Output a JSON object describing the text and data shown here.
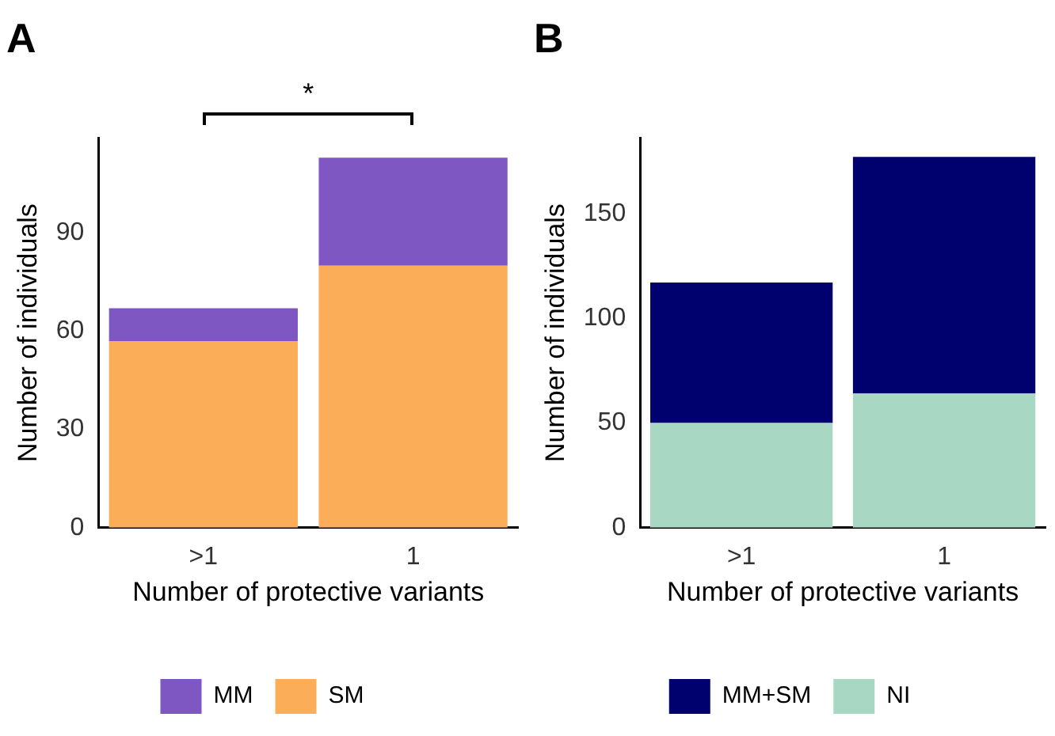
{
  "chart_data": [
    {
      "type": "bar",
      "title": "A",
      "xlabel": "Number of protective variants",
      "ylabel": "Number of individuals",
      "categories": [
        ">1",
        "1"
      ],
      "stacked": true,
      "series": [
        {
          "name": "SM",
          "color": "#fbae57",
          "values": [
            57,
            80
          ]
        },
        {
          "name": "MM",
          "color": "#7e57c2",
          "values": [
            10,
            33
          ]
        }
      ],
      "ylim": [
        0,
        119
      ],
      "yticks": [
        0,
        30,
        60,
        90
      ],
      "grid": false,
      "legend": "bottom",
      "annotations": [
        "*"
      ]
    },
    {
      "type": "bar",
      "title": "B",
      "xlabel": "Number of protective variants",
      "ylabel": "Number of individuals",
      "categories": [
        ">1",
        "1"
      ],
      "stacked": true,
      "series": [
        {
          "name": "NI",
          "color": "#a8d8c3",
          "values": [
            50,
            64
          ]
        },
        {
          "name": "MM+SM",
          "color": "#00006e",
          "values": [
            67,
            113
          ]
        }
      ],
      "ylim": [
        0,
        186
      ],
      "yticks": [
        0,
        50,
        100,
        150
      ],
      "grid": false,
      "legend": "bottom"
    }
  ]
}
